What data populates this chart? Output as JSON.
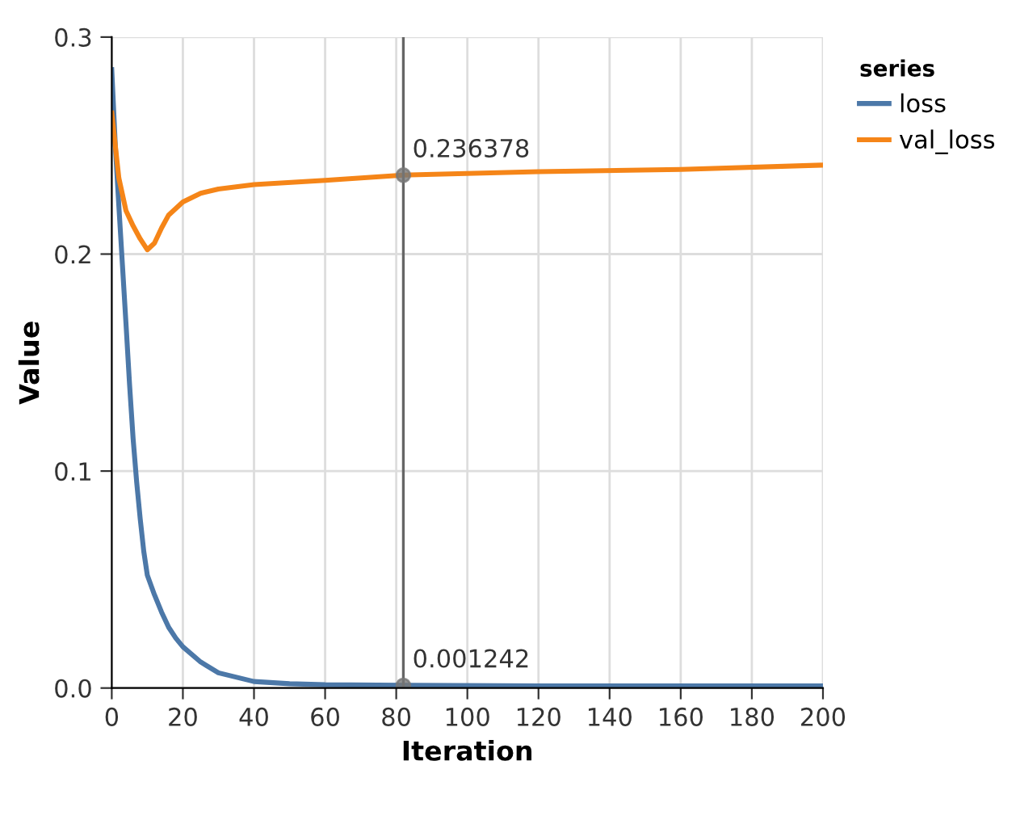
{
  "chart_data": {
    "type": "line",
    "xlabel": "Iteration",
    "ylabel": "Value",
    "legend_title": "series",
    "legend": "top right",
    "grid": true,
    "marker": "none",
    "xlim": [
      0,
      200
    ],
    "xticks": [
      0,
      20,
      40,
      60,
      80,
      100,
      120,
      140,
      160,
      180,
      200
    ],
    "ylim": [
      0,
      0.3
    ],
    "yticks": [
      {
        "value": 0,
        "label": "0.0"
      },
      0.1,
      0.2,
      0.3
    ],
    "series": [
      {
        "name": "loss",
        "color": "#4c78a8",
        "x": [
          0,
          1,
          2,
          3,
          4,
          5,
          6,
          7,
          8,
          9,
          10,
          12,
          14,
          16,
          18,
          20,
          25,
          30,
          40,
          50,
          60,
          82,
          120,
          160,
          200
        ],
        "values": [
          0.285,
          0.25,
          0.222,
          0.195,
          0.168,
          0.14,
          0.115,
          0.095,
          0.078,
          0.063,
          0.052,
          0.043,
          0.035,
          0.028,
          0.023,
          0.019,
          0.012,
          0.007,
          0.003,
          0.002,
          0.0015,
          0.001242,
          0.001,
          0.001,
          0.001
        ]
      },
      {
        "name": "val_loss",
        "color": "#f58518",
        "x": [
          0,
          2,
          4,
          6,
          8,
          10,
          12,
          14,
          16,
          20,
          25,
          30,
          40,
          60,
          82,
          120,
          160,
          200
        ],
        "values": [
          0.265,
          0.235,
          0.22,
          0.213,
          0.207,
          0.202,
          0.205,
          0.212,
          0.218,
          0.224,
          0.228,
          0.23,
          0.232,
          0.234,
          0.236378,
          0.238,
          0.239,
          0.241
        ]
      }
    ],
    "ref_lines": [
      {
        "axis": "x",
        "value": 82,
        "color": "#666666"
      }
    ],
    "annotations": [
      {
        "text": "0.236378",
        "x": 82,
        "y": 0.236378
      },
      {
        "text": "0.001242",
        "x": 82,
        "y": 0.001242
      }
    ]
  }
}
